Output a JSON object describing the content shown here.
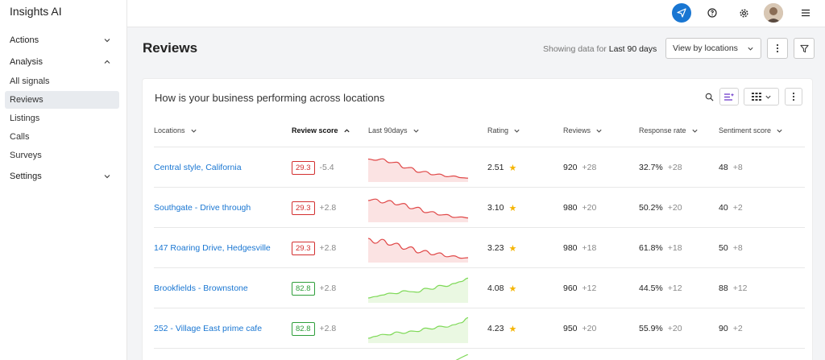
{
  "app": {
    "title": "Insights AI"
  },
  "sidebar": {
    "groups": [
      {
        "label": "Actions",
        "expanded": false
      },
      {
        "label": "Analysis",
        "expanded": true
      },
      {
        "label": "Settings",
        "expanded": false
      }
    ],
    "analysis_items": [
      {
        "label": "All signals",
        "active": false
      },
      {
        "label": "Reviews",
        "active": true
      },
      {
        "label": "Listings",
        "active": false
      },
      {
        "label": "Calls",
        "active": false
      },
      {
        "label": "Surveys",
        "active": false
      }
    ]
  },
  "topbar": {
    "icons": [
      "send-icon",
      "help-icon",
      "gear-icon",
      "avatar",
      "menu-icon"
    ],
    "accent": "#1976d2"
  },
  "page": {
    "title": "Reviews",
    "showing_prefix": "Showing data for",
    "showing_range": "Last 90 days",
    "view_select": "View by locations"
  },
  "card": {
    "title": "How is your business performing across locations",
    "columns": [
      {
        "label": "Locations",
        "sort": "down"
      },
      {
        "label": "Review score",
        "sort": "up"
      },
      {
        "label": "Last 90days",
        "sort": "down"
      },
      {
        "label": "Rating",
        "sort": "down"
      },
      {
        "label": "Reviews",
        "sort": "down"
      },
      {
        "label": "Response rate",
        "sort": "down"
      },
      {
        "label": "Sentiment score",
        "sort": "down"
      }
    ],
    "rows": [
      {
        "location": "Central style, California",
        "score": "29.3",
        "score_status": "red",
        "score_delta": "-5.4",
        "trend": [
          0.85,
          0.8,
          0.86,
          0.7,
          0.72,
          0.48,
          0.5,
          0.3,
          0.34,
          0.2,
          0.23,
          0.12,
          0.15,
          0.08,
          0.06
        ],
        "rating": "2.51",
        "reviews": "920",
        "reviews_delta": "+28",
        "response": "32.7%",
        "response_delta": "+28",
        "sentiment": "48",
        "sentiment_delta": "+8"
      },
      {
        "location": "Southgate - Drive through",
        "score": "29.3",
        "score_status": "red",
        "score_delta": "+2.8",
        "trend": [
          0.8,
          0.86,
          0.7,
          0.8,
          0.62,
          0.68,
          0.46,
          0.52,
          0.3,
          0.34,
          0.2,
          0.22,
          0.1,
          0.12,
          0.08
        ],
        "rating": "3.10",
        "reviews": "980",
        "reviews_delta": "+20",
        "response": "50.2%",
        "response_delta": "+20",
        "sentiment": "40",
        "sentiment_delta": "+2"
      },
      {
        "location": "147 Roaring Drive, Hedgesville",
        "score": "29.3",
        "score_status": "red",
        "score_delta": "+2.8",
        "trend": [
          0.9,
          0.7,
          0.86,
          0.62,
          0.7,
          0.45,
          0.55,
          0.3,
          0.4,
          0.22,
          0.3,
          0.14,
          0.18,
          0.08,
          0.1
        ],
        "rating": "3.23",
        "reviews": "980",
        "reviews_delta": "+18",
        "response": "61.8%",
        "response_delta": "+18",
        "sentiment": "50",
        "sentiment_delta": "+8"
      },
      {
        "location": "Brookfields - Brownstone",
        "score": "82.8",
        "score_status": "green",
        "score_delta": "+2.8",
        "trend": [
          0.1,
          0.16,
          0.22,
          0.3,
          0.28,
          0.4,
          0.36,
          0.34,
          0.5,
          0.46,
          0.62,
          0.58,
          0.7,
          0.78,
          0.92
        ],
        "rating": "4.08",
        "reviews": "960",
        "reviews_delta": "+12",
        "response": "44.5%",
        "response_delta": "+12",
        "sentiment": "88",
        "sentiment_delta": "+12"
      },
      {
        "location": "252 - Village East prime cafe",
        "score": "82.8",
        "score_status": "green",
        "score_delta": "+2.8",
        "trend": [
          0.1,
          0.18,
          0.26,
          0.24,
          0.36,
          0.3,
          0.4,
          0.38,
          0.52,
          0.48,
          0.6,
          0.56,
          0.66,
          0.74,
          0.95
        ],
        "rating": "4.23",
        "reviews": "950",
        "reviews_delta": "+20",
        "response": "55.9%",
        "response_delta": "+20",
        "sentiment": "90",
        "sentiment_delta": "+2"
      }
    ]
  },
  "colors": {
    "down": "#e04848",
    "down_fill": "#fbe3e3",
    "up": "#7ed957",
    "up_fill": "#eaf8e2",
    "star": "#f5b400",
    "link": "#1976d2"
  }
}
